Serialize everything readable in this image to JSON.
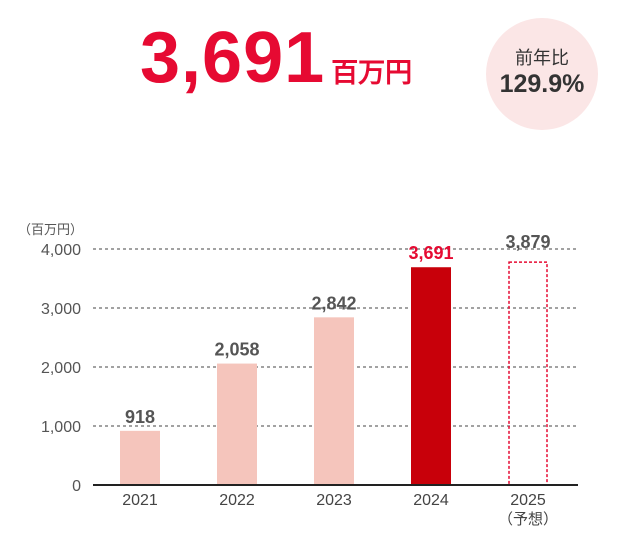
{
  "headline": {
    "value": "3,691",
    "unit": "百万円"
  },
  "yoy": {
    "label": "前年比",
    "value": "129.9%"
  },
  "colors": {
    "accent": "#e60a32",
    "bar_past": "#f5c5bc",
    "bar_current": "#c8000a",
    "bar_forecast_border": "#e60a32",
    "text_dark": "#555555"
  },
  "chart_data": {
    "type": "bar",
    "unit_label": "（百万円）",
    "categories": [
      "2021",
      "2022",
      "2023",
      "2024",
      "2025"
    ],
    "category_sublabels": [
      "",
      "",
      "",
      "",
      "（予想）"
    ],
    "values": [
      918,
      2058,
      2842,
      3691,
      3879
    ],
    "value_labels": [
      "918",
      "2,058",
      "2,842",
      "3,691",
      "3,879"
    ],
    "bar_styles": [
      "past",
      "past",
      "past",
      "current",
      "forecast"
    ],
    "yticks": [
      0,
      1000,
      2000,
      3000,
      4000
    ],
    "ytick_labels": [
      "0",
      "1,000",
      "2,000",
      "3,000",
      "4,000"
    ],
    "ylim": [
      0,
      4000
    ],
    "grid": true
  }
}
